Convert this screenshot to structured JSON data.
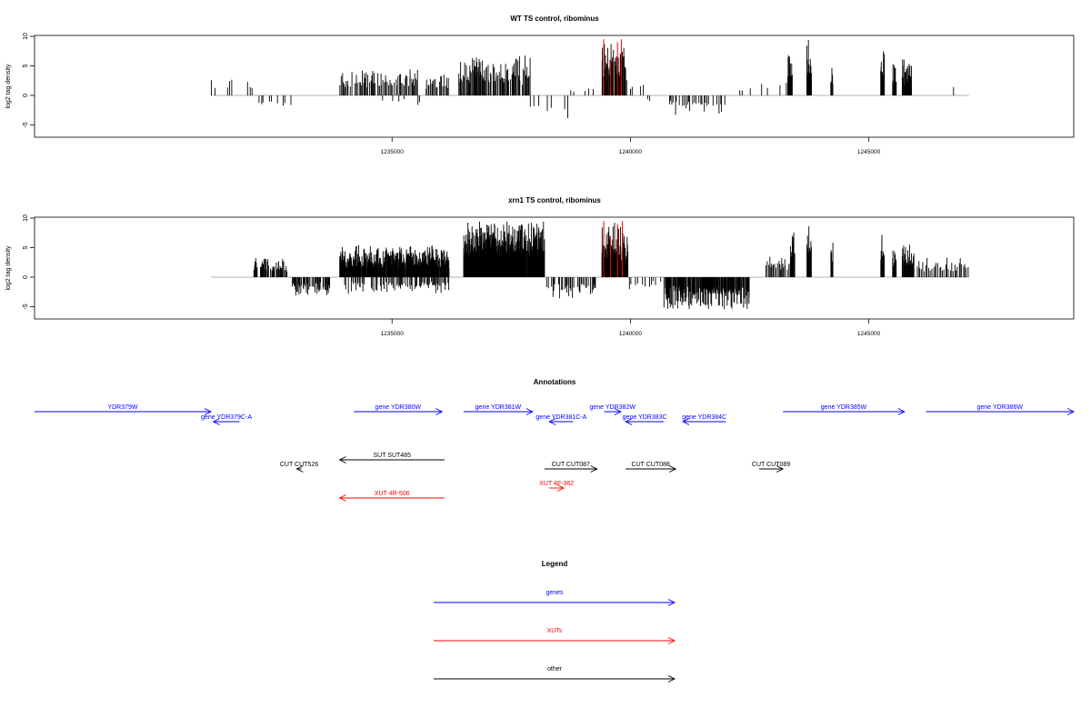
{
  "chart_data": [
    {
      "type": "bar",
      "title": "WT TS control, ribominus",
      "ylabel": "log2 tag density",
      "xlabel": "",
      "xlim": [
        1227500,
        1249300
      ],
      "ylim": [
        -7,
        10
      ],
      "yticks": [
        10,
        5,
        0,
        -5
      ],
      "ytick_labels": [
        "10",
        "5",
        "0",
        "-5"
      ],
      "xticks": [
        1235000,
        1240000,
        1245000
      ],
      "xtick_labels": [
        "1235000",
        "1240000",
        "1245000"
      ],
      "segments": [
        {
          "x": [
            1231200,
            1232100
          ],
          "amp": 2.5,
          "sign": 1,
          "density": 0.35,
          "gap": 0.5
        },
        {
          "x": [
            1232200,
            1232900
          ],
          "amp": 2.2,
          "sign": -1,
          "density": 0.45,
          "gap": 0.3
        },
        {
          "x": [
            1233900,
            1235550
          ],
          "amp": 3.5,
          "sign": 1,
          "density": 1.0,
          "gap": 0.25
        },
        {
          "x": [
            1234800,
            1235700
          ],
          "amp": 1.5,
          "sign": -1,
          "density": 0.15,
          "gap": 0.2
        },
        {
          "x": [
            1235700,
            1236200
          ],
          "amp": 3.0,
          "sign": 1,
          "density": 0.8,
          "gap": 0.2
        },
        {
          "x": [
            1236400,
            1237350
          ],
          "amp": 5.0,
          "sign": 1,
          "density": 1.5,
          "gap": 0.2
        },
        {
          "x": [
            1237350,
            1237900
          ],
          "amp": 5.0,
          "sign": 1,
          "density": 1.2,
          "gap": 0.2
        },
        {
          "x": [
            1237900,
            1238750
          ],
          "amp": 3.0,
          "sign": -1,
          "density": 0.3,
          "gap": 0.5
        },
        {
          "x": [
            1238700,
            1239300
          ],
          "amp": 1.5,
          "sign": 1,
          "density": 0.2,
          "gap": 0.4
        },
        {
          "x": [
            1239400,
            1239900
          ],
          "amp": 7.0,
          "sign": 1,
          "density": 2.2,
          "gap": 0.1
        },
        {
          "x": [
            1239900,
            1240300
          ],
          "amp": 2.0,
          "sign": 1,
          "density": 0.3,
          "gap": 0.3
        },
        {
          "x": [
            1240300,
            1240700
          ],
          "amp": 1.0,
          "sign": -1,
          "density": 0.2,
          "gap": 0.3
        },
        {
          "x": [
            1240800,
            1242000
          ],
          "amp": 2.5,
          "sign": -1,
          "density": 0.6,
          "gap": 0.25
        },
        {
          "x": [
            1242200,
            1243300
          ],
          "amp": 2.0,
          "sign": 1,
          "density": 0.15,
          "gap": 0.3
        },
        {
          "x": [
            1243300,
            1243400
          ],
          "amp": 5.5,
          "sign": 1,
          "density": 3.0,
          "gap": 0.0
        },
        {
          "x": [
            1243700,
            1243800
          ],
          "amp": 7.5,
          "sign": 1,
          "density": 3.0,
          "gap": 0.0
        },
        {
          "x": [
            1244200,
            1244250
          ],
          "amp": 3.5,
          "sign": 1,
          "density": 3.0,
          "gap": 0.0
        },
        {
          "x": [
            1245250,
            1245330
          ],
          "amp": 5.5,
          "sign": 1,
          "density": 3.0,
          "gap": 0.0
        },
        {
          "x": [
            1245500,
            1245580
          ],
          "amp": 4.5,
          "sign": 1,
          "density": 3.0,
          "gap": 0.0
        },
        {
          "x": [
            1245700,
            1245900
          ],
          "amp": 5.0,
          "sign": 1,
          "density": 2.5,
          "gap": 0.0
        },
        {
          "x": [
            1246000,
            1247100
          ],
          "amp": 1.5,
          "sign": 1,
          "density": 0.02,
          "gap": 0.0
        }
      ],
      "highlights": [
        {
          "x": 1239440,
          "y": 9.5
        },
        {
          "x": 1239580,
          "y": 6.0
        },
        {
          "x": 1239730,
          "y": 9.0
        },
        {
          "x": 1239810,
          "y": 9.5
        }
      ]
    },
    {
      "type": "bar",
      "title": "xrn1 TS control, ribominus",
      "ylabel": "log2 tag density",
      "xlabel": "",
      "xlim": [
        1227500,
        1249300
      ],
      "ylim": [
        -7,
        10
      ],
      "yticks": [
        10,
        5,
        0,
        -5
      ],
      "ytick_labels": [
        "10",
        "5",
        "0",
        "-5"
      ],
      "xticks": [
        1235000,
        1240000,
        1245000
      ],
      "xtick_labels": [
        "1235000",
        "1240000",
        "1245000"
      ],
      "segments": [
        {
          "x": [
            1232100,
            1232800
          ],
          "amp": 2.5,
          "sign": 1,
          "density": 2.0,
          "gap": 0.3
        },
        {
          "x": [
            1232900,
            1233700
          ],
          "amp": 2.5,
          "sign": -1,
          "density": 1.5,
          "gap": 0.3
        },
        {
          "x": [
            1233900,
            1236200
          ],
          "amp": 4.0,
          "sign": 1,
          "density": 3.0,
          "gap": 0.1
        },
        {
          "x": [
            1234000,
            1236200
          ],
          "amp": 2.0,
          "sign": -1,
          "density": 1.0,
          "gap": 0.3
        },
        {
          "x": [
            1236500,
            1238200
          ],
          "amp": 7.0,
          "sign": 1,
          "density": 4.0,
          "gap": 0.05
        },
        {
          "x": [
            1238200,
            1239300
          ],
          "amp": 3.0,
          "sign": -1,
          "density": 1.0,
          "gap": 0.4
        },
        {
          "x": [
            1239400,
            1239950
          ],
          "amp": 7.0,
          "sign": 1,
          "density": 3.0,
          "gap": 0.1
        },
        {
          "x": [
            1239950,
            1240700
          ],
          "amp": 1.5,
          "sign": -1,
          "density": 0.4,
          "gap": 0.3
        },
        {
          "x": [
            1240700,
            1242500
          ],
          "amp": 4.0,
          "sign": -1,
          "density": 2.0,
          "gap": 0.2
        },
        {
          "x": [
            1242800,
            1243400
          ],
          "amp": 3.0,
          "sign": 1,
          "density": 1.0,
          "gap": 0.3
        },
        {
          "x": [
            1243350,
            1243450
          ],
          "amp": 6.0,
          "sign": 1,
          "density": 3.0,
          "gap": 0.0
        },
        {
          "x": [
            1243700,
            1243800
          ],
          "amp": 7.0,
          "sign": 1,
          "density": 3.0,
          "gap": 0.0
        },
        {
          "x": [
            1244200,
            1244250
          ],
          "amp": 4.5,
          "sign": 1,
          "density": 3.0,
          "gap": 0.0
        },
        {
          "x": [
            1245250,
            1245330
          ],
          "amp": 5.5,
          "sign": 1,
          "density": 3.0,
          "gap": 0.0
        },
        {
          "x": [
            1245500,
            1245580
          ],
          "amp": 4.5,
          "sign": 1,
          "density": 3.0,
          "gap": 0.0
        },
        {
          "x": [
            1245700,
            1245950
          ],
          "amp": 4.5,
          "sign": 1,
          "density": 2.0,
          "gap": 0.0
        },
        {
          "x": [
            1246000,
            1247100
          ],
          "amp": 2.5,
          "sign": 1,
          "density": 0.6,
          "gap": 0.0
        }
      ],
      "highlights": [
        {
          "x": 1239440,
          "y": 9.5
        },
        {
          "x": 1239580,
          "y": 7.0
        },
        {
          "x": 1239730,
          "y": 9.0
        },
        {
          "x": 1239830,
          "y": 9.5
        }
      ]
    }
  ],
  "annotations": {
    "title": "Annotations",
    "colors": {
      "gene": "#0000ff",
      "xut": "#ff0000",
      "other": "#000000"
    },
    "features": [
      {
        "label": "YDR379W",
        "type": "gene",
        "start": 1227500,
        "end": 1231200,
        "dir": "right",
        "row": 0
      },
      {
        "label": "gene YDR379C-A",
        "type": "gene",
        "start": 1231250,
        "end": 1231800,
        "dir": "left",
        "row": 1
      },
      {
        "label": "gene YDR380W",
        "type": "gene",
        "start": 1234200,
        "end": 1236050,
        "dir": "right",
        "row": 0
      },
      {
        "label": "gene YDR381W",
        "type": "gene",
        "start": 1236500,
        "end": 1237950,
        "dir": "right",
        "row": 0
      },
      {
        "label": "gene YDR381C-A",
        "type": "gene",
        "start": 1238300,
        "end": 1238800,
        "dir": "left",
        "row": 1
      },
      {
        "label": "gene YDR382W",
        "type": "gene",
        "start": 1239450,
        "end": 1239800,
        "dir": "right",
        "row": 0
      },
      {
        "label": "gene YDR383C",
        "type": "gene",
        "start": 1239900,
        "end": 1240700,
        "dir": "left",
        "row": 1
      },
      {
        "label": "gene YDR384C",
        "type": "gene",
        "start": 1241100,
        "end": 1242000,
        "dir": "left",
        "row": 1
      },
      {
        "label": "gene YDR385W",
        "type": "gene",
        "start": 1243200,
        "end": 1245750,
        "dir": "right",
        "row": 0
      },
      {
        "label": "gene YDR386W",
        "type": "gene",
        "start": 1246200,
        "end": 1249300,
        "dir": "right",
        "row": 0
      },
      {
        "label": "SUT SUT485",
        "type": "other",
        "start": 1233900,
        "end": 1236100,
        "dir": "left",
        "row": 4
      },
      {
        "label": "CUT CUT526",
        "type": "other",
        "start": 1233000,
        "end": 1233100,
        "dir": "left",
        "row": 5
      },
      {
        "label": "CUT CUT087",
        "type": "other",
        "start": 1238200,
        "end": 1239300,
        "dir": "right",
        "row": 5
      },
      {
        "label": "CUT CUT088",
        "type": "other",
        "start": 1239900,
        "end": 1240950,
        "dir": "right",
        "row": 5
      },
      {
        "label": "CUT CUT089",
        "type": "other",
        "start": 1242700,
        "end": 1243200,
        "dir": "right",
        "row": 5
      },
      {
        "label": "XUT 4F-362",
        "type": "xut",
        "start": 1238300,
        "end": 1238600,
        "dir": "right",
        "row": 6
      },
      {
        "label": "XUT 4R-506",
        "type": "xut",
        "start": 1233900,
        "end": 1236100,
        "dir": "left",
        "row": 7
      }
    ]
  },
  "legend": {
    "title": "Legend",
    "items": [
      {
        "label": "genes",
        "color": "#0000ff"
      },
      {
        "label": "XUTs",
        "color": "#ff0000"
      },
      {
        "label": "other",
        "color": "#000000"
      }
    ]
  }
}
